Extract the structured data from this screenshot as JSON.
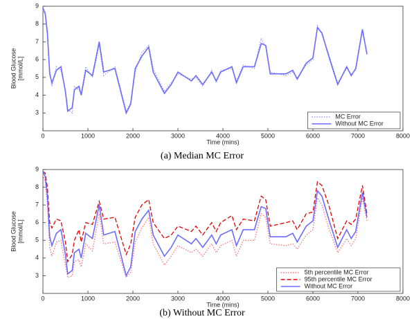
{
  "chart_data": [
    {
      "type": "line",
      "caption": "(a) Median MC Error",
      "xlabel": "Time (mins)",
      "ylabel": [
        "Blood Glucose",
        "[mmol/L]"
      ],
      "xlim": [
        0,
        8000
      ],
      "xticks": [
        0,
        1000,
        2000,
        3000,
        4000,
        5000,
        6000,
        7000,
        8000
      ],
      "ylim": [
        2,
        9
      ],
      "yticks": [
        3,
        4,
        5,
        6,
        7,
        8,
        9
      ],
      "legend": "lower right",
      "x": [
        0,
        50,
        100,
        150,
        200,
        300,
        400,
        500,
        550,
        650,
        700,
        800,
        850,
        950,
        1100,
        1250,
        1350,
        1600,
        1850,
        1950,
        2050,
        2200,
        2350,
        2450,
        2700,
        2850,
        3000,
        3300,
        3400,
        3550,
        3750,
        3850,
        3950,
        4200,
        4300,
        4450,
        4700,
        4850,
        4950,
        5050,
        5400,
        5550,
        5650,
        5850,
        6000,
        6100,
        6200,
        6350,
        6550,
        6750,
        6850,
        6950,
        7100,
        7200
      ],
      "series": [
        {
          "name": "MC Error",
          "color": "#9a9aff",
          "style": "dotted",
          "values": [
            8.8,
            8.5,
            7.3,
            5.4,
            4.5,
            5.6,
            5.4,
            4.3,
            3.2,
            3.0,
            4.5,
            4.3,
            4.1,
            5.6,
            5.0,
            6.8,
            5.1,
            5.6,
            3.1,
            3.6,
            5.3,
            6.4,
            6.8,
            5.5,
            4.2,
            4.7,
            5.2,
            4.9,
            5.0,
            4.5,
            5.4,
            4.7,
            5.4,
            5.5,
            4.8,
            5.7,
            5.5,
            7.2,
            6.7,
            5.3,
            5.1,
            5.3,
            5.0,
            5.7,
            6.0,
            7.9,
            7.4,
            6.3,
            4.7,
            5.5,
            5.2,
            5.4,
            7.6,
            6.4
          ]
        },
        {
          "name": "Without MC Error",
          "color": "#6b6bff",
          "style": "solid",
          "values": [
            8.9,
            8.6,
            7.5,
            5.2,
            4.7,
            5.4,
            5.6,
            4.2,
            3.1,
            3.3,
            4.3,
            4.5,
            4.0,
            5.4,
            5.1,
            7.0,
            5.3,
            5.5,
            3.0,
            3.5,
            5.5,
            6.2,
            6.7,
            5.3,
            4.1,
            4.6,
            5.3,
            4.8,
            5.1,
            4.6,
            5.3,
            4.8,
            5.3,
            5.6,
            4.7,
            5.6,
            5.6,
            6.9,
            6.8,
            5.2,
            5.2,
            5.4,
            4.9,
            5.8,
            6.1,
            7.8,
            7.5,
            6.2,
            4.6,
            5.6,
            5.1,
            5.5,
            7.7,
            6.3
          ]
        }
      ]
    },
    {
      "type": "line",
      "caption": "(b) Without MC Error",
      "xlabel": "Time (mins)",
      "ylabel": [
        "Blood Glucose",
        "[mmol/L]"
      ],
      "xlim": [
        0,
        8000
      ],
      "xticks": [
        0,
        1000,
        2000,
        3000,
        4000,
        5000,
        6000,
        7000,
        8000
      ],
      "ylim": [
        2,
        9
      ],
      "yticks": [
        3,
        4,
        5,
        6,
        7,
        8,
        9
      ],
      "legend": "lower right",
      "x": [
        0,
        50,
        100,
        150,
        200,
        300,
        400,
        500,
        550,
        650,
        700,
        800,
        850,
        950,
        1100,
        1250,
        1350,
        1600,
        1850,
        1950,
        2050,
        2200,
        2350,
        2450,
        2700,
        2850,
        3000,
        3300,
        3400,
        3550,
        3750,
        3850,
        3950,
        4200,
        4300,
        4450,
        4700,
        4850,
        4950,
        5050,
        5400,
        5550,
        5650,
        5850,
        6000,
        6100,
        6200,
        6350,
        6550,
        6750,
        6850,
        6950,
        7100,
        7200
      ],
      "series": [
        {
          "name": "5th percentile MC Error",
          "color": "#ff7070",
          "style": "dotted",
          "values": [
            8.7,
            8.3,
            7.0,
            4.6,
            4.1,
            4.9,
            5.0,
            3.6,
            2.9,
            3.0,
            3.8,
            3.9,
            3.5,
            4.8,
            4.4,
            6.5,
            4.8,
            4.9,
            2.9,
            3.2,
            4.9,
            5.7,
            6.3,
            4.8,
            3.6,
            4.1,
            4.7,
            4.3,
            4.5,
            4.1,
            4.8,
            4.3,
            4.7,
            5.0,
            4.1,
            5.0,
            5.0,
            6.5,
            6.3,
            4.8,
            4.7,
            4.8,
            4.5,
            5.3,
            5.6,
            7.4,
            7.0,
            5.7,
            4.3,
            5.1,
            4.7,
            5.1,
            7.4,
            6.1
          ]
        },
        {
          "name": "95th percentile MC Error",
          "color": "#e00000",
          "style": "dashed",
          "values": [
            8.9,
            8.8,
            8.0,
            6.0,
            5.7,
            6.2,
            6.1,
            4.9,
            3.8,
            4.2,
            5.0,
            5.6,
            4.9,
            6.0,
            5.9,
            7.2,
            6.2,
            6.3,
            4.2,
            4.8,
            6.3,
            7.0,
            7.3,
            6.0,
            5.1,
            5.3,
            5.8,
            5.5,
            5.8,
            5.3,
            6.0,
            5.5,
            6.0,
            6.4,
            5.6,
            6.2,
            6.1,
            7.5,
            7.3,
            5.8,
            6.0,
            6.1,
            5.6,
            6.5,
            6.6,
            8.3,
            8.1,
            7.0,
            5.1,
            6.1,
            5.9,
            6.2,
            8.1,
            6.5
          ]
        },
        {
          "name": "Without MC Error",
          "color": "#6b6bff",
          "style": "solid",
          "values": [
            8.9,
            8.6,
            7.5,
            5.2,
            4.7,
            5.4,
            5.6,
            4.2,
            3.1,
            3.3,
            4.3,
            4.5,
            4.0,
            5.4,
            5.1,
            7.0,
            5.3,
            5.5,
            3.0,
            3.5,
            5.5,
            6.2,
            6.7,
            5.3,
            4.1,
            4.6,
            5.3,
            4.8,
            5.1,
            4.6,
            5.3,
            4.8,
            5.3,
            5.6,
            4.7,
            5.6,
            5.6,
            6.9,
            6.8,
            5.2,
            5.2,
            5.4,
            4.9,
            5.8,
            6.1,
            7.8,
            7.5,
            6.2,
            4.6,
            5.6,
            5.1,
            5.5,
            7.7,
            6.3
          ]
        }
      ]
    }
  ]
}
